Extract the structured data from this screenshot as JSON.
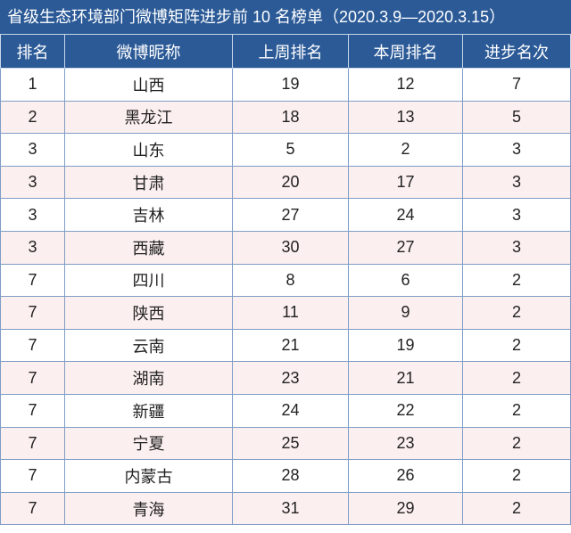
{
  "title": "省级生态环境部门微博矩阵进步前 10 名榜单（2020.3.9—2020.3.15）",
  "table": {
    "header": [
      "排名",
      "微博昵称",
      "上周排名",
      "本周排名",
      "进步名次"
    ],
    "rows": [
      [
        1,
        "山西",
        19,
        12,
        7
      ],
      [
        2,
        "黑龙江",
        18,
        13,
        5
      ],
      [
        3,
        "山东",
        5,
        2,
        3
      ],
      [
        3,
        "甘肃",
        20,
        17,
        3
      ],
      [
        3,
        "吉林",
        27,
        24,
        3
      ],
      [
        3,
        "西藏",
        30,
        27,
        3
      ],
      [
        7,
        "四川",
        8,
        6,
        2
      ],
      [
        7,
        "陕西",
        11,
        9,
        2
      ],
      [
        7,
        "云南",
        21,
        19,
        2
      ],
      [
        7,
        "湖南",
        23,
        21,
        2
      ],
      [
        7,
        "新疆",
        24,
        22,
        2
      ],
      [
        7,
        "宁夏",
        25,
        23,
        2
      ],
      [
        7,
        "内蒙古",
        28,
        26,
        2
      ],
      [
        7,
        "青海",
        31,
        29,
        2
      ]
    ]
  }
}
